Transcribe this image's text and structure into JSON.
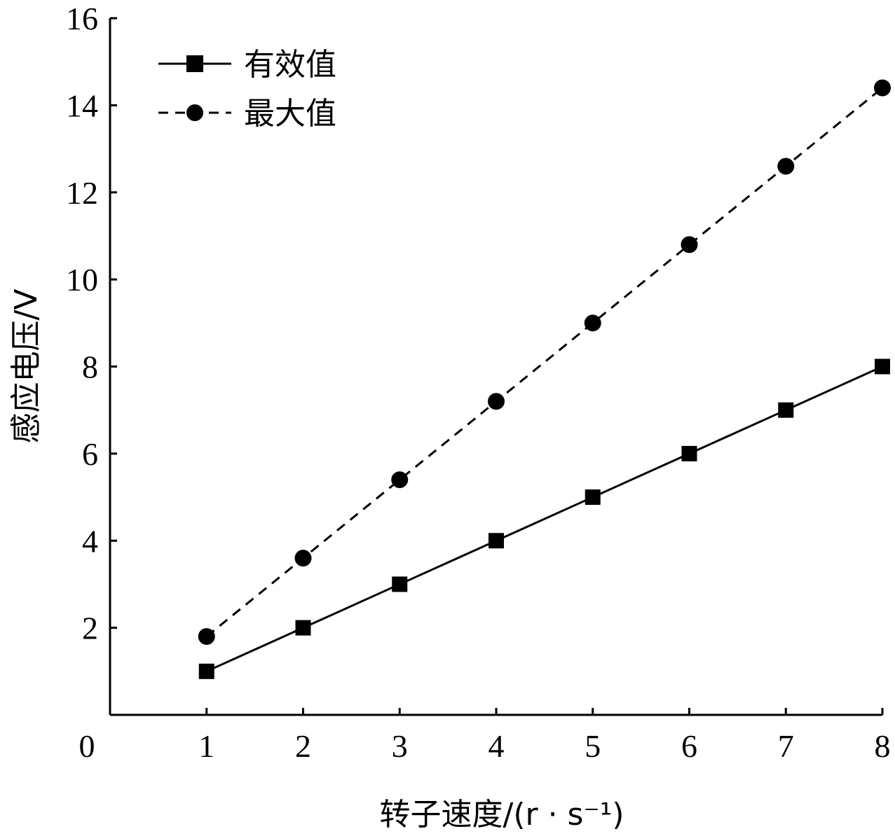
{
  "chart_data": {
    "type": "line",
    "title": "",
    "xlabel": "转子速度/(r · s⁻¹)",
    "ylabel": "感应电压/V",
    "x": [
      1,
      2,
      3,
      4,
      5,
      6,
      7,
      8
    ],
    "xlim": [
      0,
      8
    ],
    "ylim": [
      0,
      16
    ],
    "x_ticks": [
      0,
      1,
      2,
      3,
      4,
      5,
      6,
      7,
      8
    ],
    "y_ticks": [
      2,
      4,
      6,
      8,
      10,
      12,
      14,
      16
    ],
    "grid": false,
    "legend_position": "top-left",
    "series": [
      {
        "name": "有效值",
        "marker": "square",
        "line_style": "solid",
        "color": "#000000",
        "values": [
          1,
          2,
          3,
          4,
          5,
          6,
          7,
          8
        ]
      },
      {
        "name": "最大值",
        "marker": "circle",
        "line_style": "dashed",
        "color": "#000000",
        "values": [
          1.8,
          3.6,
          5.4,
          7.2,
          9.0,
          10.8,
          12.6,
          14.4
        ]
      }
    ]
  }
}
